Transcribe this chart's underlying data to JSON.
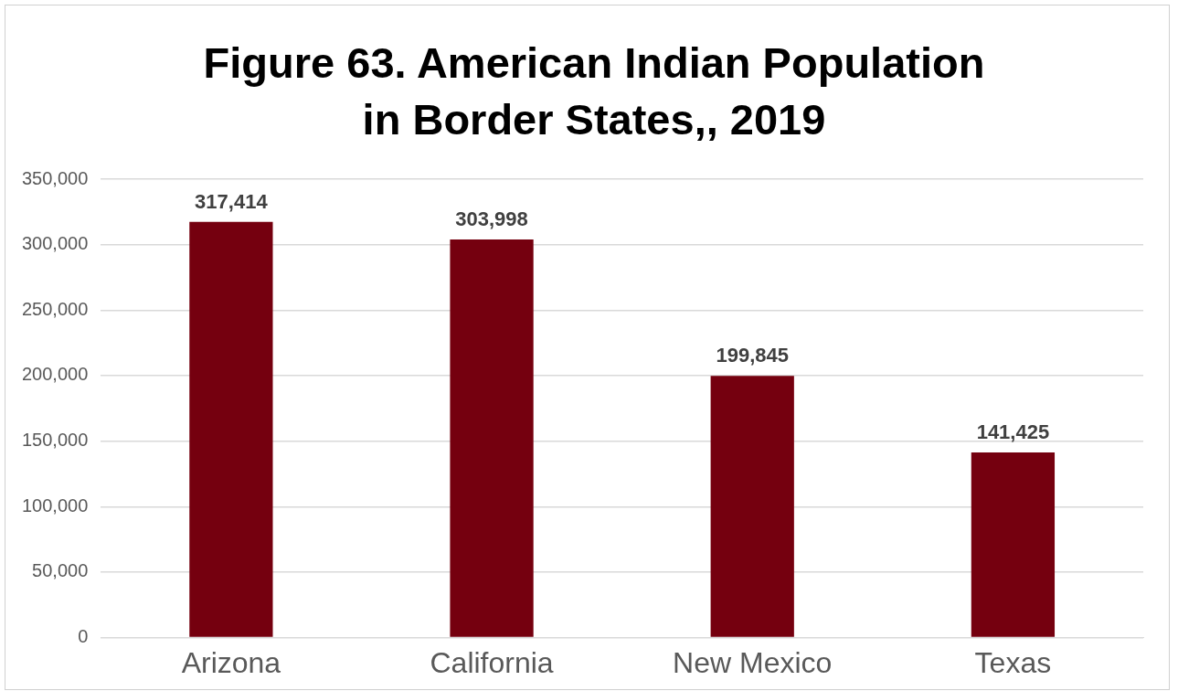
{
  "chart_data": {
    "type": "bar",
    "title": "Figure 63. American Indian Population in Border States,, 2019",
    "categories": [
      "Arizona",
      "California",
      "New Mexico",
      "Texas"
    ],
    "values": [
      317414,
      303998,
      199845,
      141425
    ],
    "color": "#75000f",
    "value_labels": [
      "317,414",
      "303,998",
      "199,845",
      "141,425"
    ],
    "ylim": [
      0,
      350000
    ],
    "yticks": [
      {
        "value": 0,
        "label": "0"
      },
      {
        "value": 50000,
        "label": "50,000"
      },
      {
        "value": 100000,
        "label": "100,000"
      },
      {
        "value": 150000,
        "label": "150,000"
      },
      {
        "value": 200000,
        "label": "200,000"
      },
      {
        "value": 250000,
        "label": "250,000"
      },
      {
        "value": 300000,
        "label": "300,000"
      },
      {
        "value": 350000,
        "label": "350,000"
      }
    ],
    "grid": "y",
    "legend": false
  }
}
